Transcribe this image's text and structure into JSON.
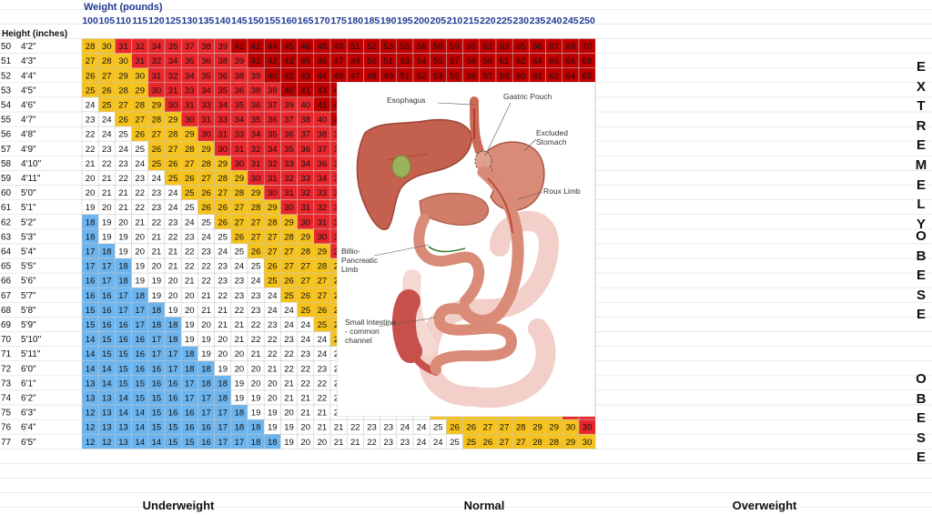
{
  "chart_data": {
    "type": "table",
    "weight_axis_label": "Weight (pounds)",
    "height_axis_label": "Height (inches)",
    "weights": [
      100,
      105,
      110,
      115,
      120,
      125,
      130,
      135,
      140,
      145,
      150,
      155,
      160,
      165,
      170,
      175,
      180,
      185,
      190,
      195,
      200,
      205,
      210,
      215,
      220,
      225,
      230,
      235,
      240,
      245,
      250
    ],
    "heights_in": [
      50,
      51,
      52,
      53,
      54,
      55,
      56,
      57,
      58,
      59,
      60,
      61,
      62,
      63,
      64,
      65,
      66,
      67,
      68,
      69,
      70,
      71,
      72,
      73,
      74,
      75,
      76,
      77
    ],
    "heights_ft": [
      "4'2\"",
      "4'3\"",
      "4'4\"",
      "4'5\"",
      "4'6\"",
      "4'7\"",
      "4'8\"",
      "4'9\"",
      "4'10\"",
      "4'11\"",
      "5'0\"",
      "5'1\"",
      "5'2\"",
      "5'3\"",
      "5'4\"",
      "5'5\"",
      "5'6\"",
      "5'7\"",
      "5'8\"",
      "5'9\"",
      "5'10\"",
      "5'11\"",
      "6'0\"",
      "6'1\"",
      "6'2\"",
      "6'3\"",
      "6'4\"",
      "6'5\""
    ],
    "category_labels": [
      "Underweight",
      "Normal",
      "Overweight"
    ],
    "side_labels": [
      "EXTREMELY OBESE",
      "OBESE"
    ],
    "colors": {
      "underweight": "#6cb4ee",
      "normal": "#ffffff",
      "overweight": "#f6c21c",
      "obese": "#e8262b",
      "extremely_obese": "#c00000",
      "header_text": "#1f3a93",
      "grid": "#c8c8c8"
    },
    "thresholds": {
      "underweight_below": 18.5,
      "normal_below": 25,
      "overweight_below": 30,
      "obese_below": 40
    }
  },
  "diagram": {
    "labels": {
      "esophagus": "Esophagus",
      "gastric_pouch": "Gastric Pouch",
      "excluded_stomach": "Excluded Stomach",
      "roux_limb": "Roux Limb",
      "biliopancreatic_limb": "Billio-Pancreatic Limb",
      "small_intestine": "Small Intestine - common channel"
    }
  }
}
